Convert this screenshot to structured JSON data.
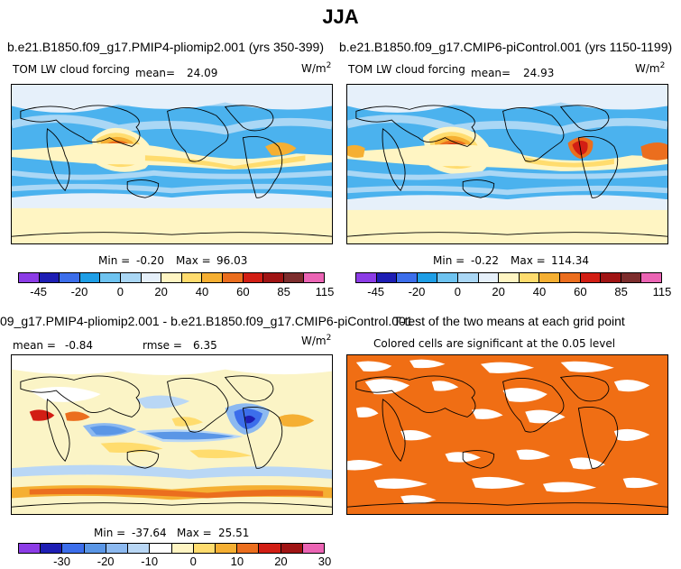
{
  "page_title": "JJA",
  "panel_left_top": {
    "case": "b.e21.B1850.f09_g17.PMIP4-pliomip2.001 (yrs 350-399)",
    "var": "TOM LW cloud forcing",
    "mean_label": "mean=",
    "mean_value": "24.09",
    "units": "W/m",
    "units_exp": "2",
    "min_label": "Min =",
    "min_value": "-0.20",
    "max_label": "Max =",
    "max_value": "96.03",
    "ticks": [
      "-45",
      "-20",
      "0",
      "20",
      "40",
      "60",
      "85",
      "115"
    ]
  },
  "panel_right_top": {
    "case": "b.e21.B1850.f09_g17.CMIP6-piControl.001 (yrs 1150-1199)",
    "var": "TOM LW cloud forcing",
    "mean_label": "mean=",
    "mean_value": "24.93",
    "units": "W/m",
    "units_exp": "2",
    "min_label": "Min =",
    "min_value": "-0.22",
    "max_label": "Max =",
    "max_value": "114.34",
    "ticks": [
      "-45",
      "-20",
      "0",
      "20",
      "40",
      "60",
      "85",
      "115"
    ]
  },
  "panel_left_bottom": {
    "case": "09_g17.PMIP4-pliomip2.001 - b.e21.B1850.f09_g17.CMIP6-piControl.001",
    "mean_label": "mean =",
    "mean_value": "-0.84",
    "rmse_label": "rmse =",
    "rmse_value": "6.35",
    "units": "W/m",
    "units_exp": "2",
    "min_label": "Min =",
    "min_value": "-37.64",
    "max_label": "Max =",
    "max_value": "25.51",
    "ticks": [
      "-30",
      "-20",
      "-10",
      "0",
      "10",
      "20",
      "30"
    ]
  },
  "panel_right_bottom": {
    "title": "T-test of the two means at each grid point",
    "subtitle": "Colored cells are significant at the 0.05 level"
  },
  "colors": {
    "abs_scale": [
      "#8c3ce6",
      "#1e1eb4",
      "#3c6eeb",
      "#1e9ee6",
      "#6ec3f0",
      "#aad7f5",
      "#e6f0fa",
      "#fff5c3",
      "#ffdc6e",
      "#f5af32",
      "#eb6e1e",
      "#d21e14",
      "#a01414",
      "#7d2d2d",
      "#eb64b4"
    ],
    "diff_scale": [
      "#8c3ce6",
      "#1e1eb4",
      "#3c6eeb",
      "#5a96e6",
      "#8cb9f0",
      "#b9d7f5",
      "#ffffff",
      "#fff5c3",
      "#ffdc6e",
      "#f5af32",
      "#eb6e1e",
      "#d21e14",
      "#a01414",
      "#eb64b4"
    ],
    "ttest_orange": "#f06e14",
    "ocean_base": "#4bb2ee",
    "diff_base": "#fbf4c6"
  }
}
